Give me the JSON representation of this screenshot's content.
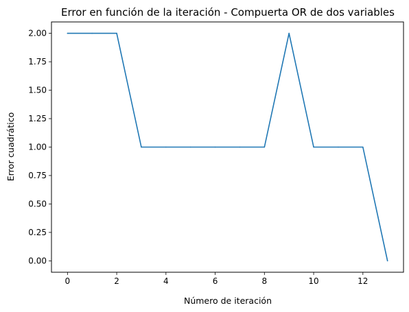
{
  "chart_data": {
    "type": "line",
    "title": "Error en función de la iteración - Compuerta OR de dos variables",
    "xlabel": "Número de iteración",
    "ylabel": "Error cuadrático",
    "x": [
      0,
      1,
      2,
      3,
      4,
      5,
      6,
      7,
      8,
      9,
      10,
      11,
      12,
      13
    ],
    "series": [
      {
        "values": [
          2,
          2,
          2,
          1,
          1,
          1,
          1,
          1,
          1,
          2,
          1,
          1,
          1,
          0
        ],
        "color": "#1f77b4"
      }
    ],
    "xlim": [
      -0.65,
      13.65
    ],
    "ylim": [
      -0.1,
      2.1
    ],
    "xticks": [
      0,
      2,
      4,
      6,
      8,
      10,
      12
    ],
    "xtick_labels": [
      "0",
      "2",
      "4",
      "6",
      "8",
      "10",
      "12"
    ],
    "yticks": [
      0,
      0.25,
      0.5,
      0.75,
      1,
      1.25,
      1.5,
      1.75,
      2
    ],
    "ytick_labels": [
      "0.00",
      "0.25",
      "0.50",
      "0.75",
      "1.00",
      "1.25",
      "1.50",
      "1.75",
      "2.00"
    ],
    "grid": false,
    "legend": false
  }
}
